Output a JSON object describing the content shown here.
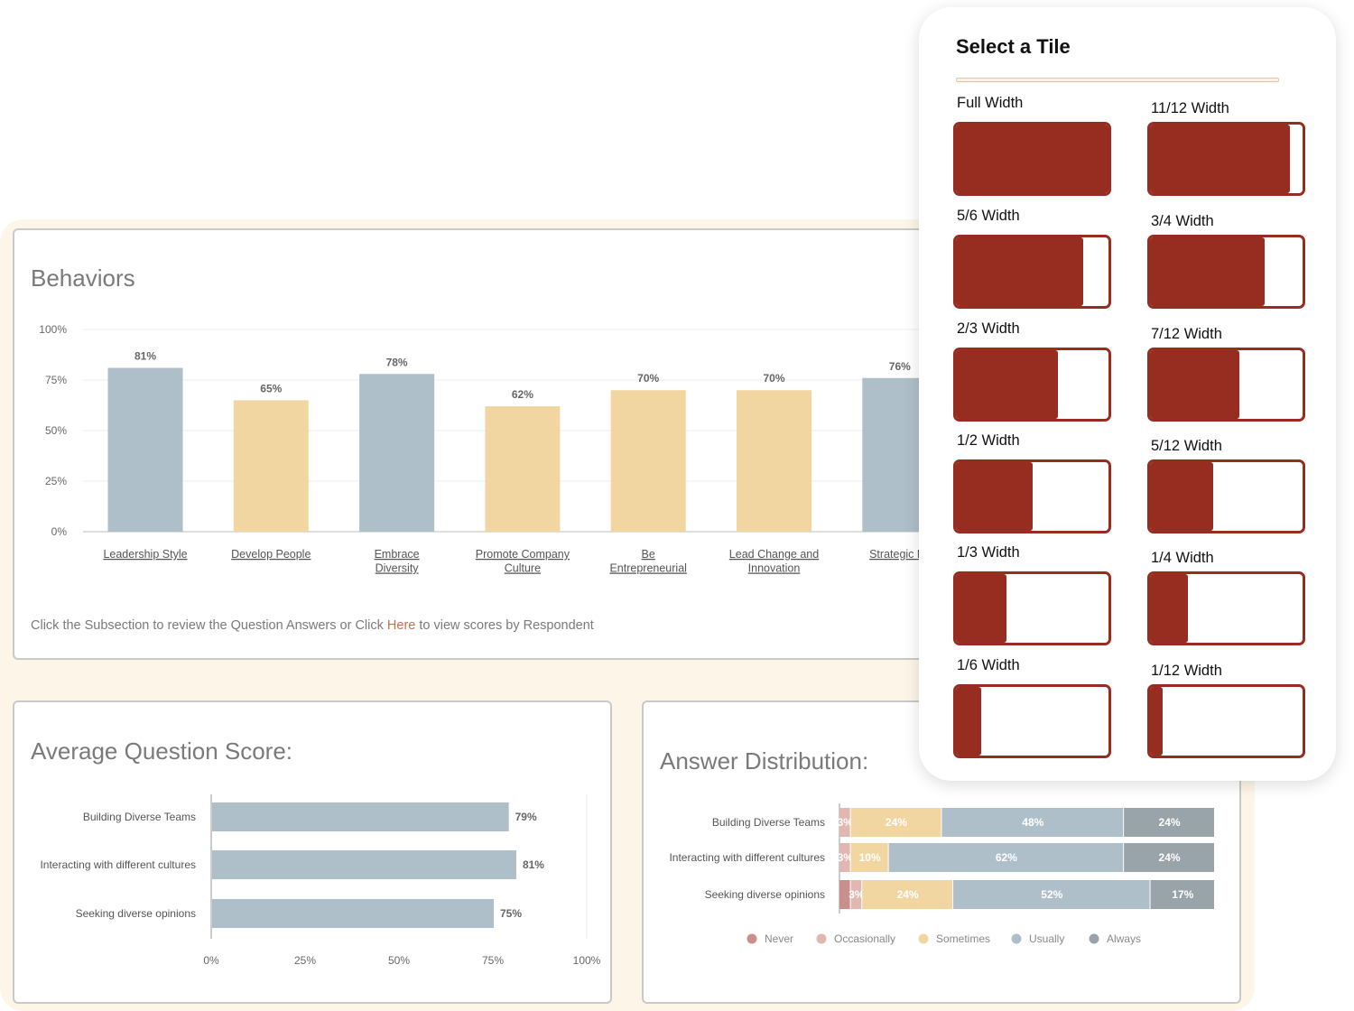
{
  "behaviors": {
    "title": "Behaviors",
    "footer_text_before": "Click the Subsection to review the Question Answers or Click",
    "footer_link": "Here",
    "footer_text_after": "to view scores by Respondent",
    "chart_data": {
      "type": "bar",
      "categories": [
        "Leadership Style",
        "Develop People",
        "Embrace Diversity",
        "Promote Company Culture",
        "Be Entrepreneurial",
        "Lead Change and Innovation",
        "Strategic Fo"
      ],
      "values": [
        81,
        65,
        78,
        62,
        70,
        70,
        76
      ],
      "value_labels": [
        "81%",
        "65%",
        "78%",
        "62%",
        "70%",
        "70%",
        "76%"
      ],
      "bar_colors": [
        "#afbfc9",
        "#f2d6a2",
        "#afbfc9",
        "#f2d6a2",
        "#f2d6a2",
        "#f2d6a2",
        "#afbfc9"
      ],
      "yticks": [
        "100%",
        "75%",
        "50%",
        "25%",
        "0%"
      ],
      "ylim": [
        0,
        100
      ],
      "grid": true
    }
  },
  "avg_score": {
    "title": "Average Question Score:",
    "chart_data": {
      "type": "bar",
      "orientation": "horizontal",
      "categories": [
        "Building Diverse Teams",
        "Interacting with different cultures",
        "Seeking diverse opinions"
      ],
      "values": [
        79,
        81,
        75
      ],
      "value_labels": [
        "79%",
        "81%",
        "75%"
      ],
      "xticks": [
        "0%",
        "25%",
        "50%",
        "75%",
        "100%"
      ],
      "xlim": [
        0,
        100
      ],
      "bar_color": "#afbfc9"
    }
  },
  "distribution": {
    "title": "Answer Distribution:",
    "chart_data": {
      "type": "bar",
      "orientation": "horizontal",
      "stacked": true,
      "categories": [
        "Building Diverse Teams",
        "Interacting with different cultures",
        "Seeking diverse opinions"
      ],
      "series": [
        {
          "name": "Never",
          "color": "#c98f8b",
          "values": [
            0,
            0,
            3
          ]
        },
        {
          "name": "Occasionally",
          "color": "#e2b6b1",
          "values": [
            3,
            3,
            3
          ]
        },
        {
          "name": "Sometimes",
          "color": "#f2d6a2",
          "values": [
            24,
            10,
            24
          ]
        },
        {
          "name": "Usually",
          "color": "#afbfc9",
          "values": [
            48,
            62,
            52
          ]
        },
        {
          "name": "Always",
          "color": "#99a3aa",
          "values": [
            24,
            24,
            17
          ]
        }
      ],
      "segment_labels": [
        [
          "",
          "3%",
          "24%",
          "48%",
          "24%"
        ],
        [
          "",
          "3%",
          "10%",
          "62%",
          "24%"
        ],
        [
          "",
          "3%",
          "24%",
          "52%",
          "17%"
        ]
      ],
      "legend_position": "bottom"
    }
  },
  "tile_selector": {
    "title": "Select a Tile",
    "tiles": [
      {
        "label": "Full Width",
        "fraction": 1.0
      },
      {
        "label": "11/12 Width",
        "fraction": 0.9167
      },
      {
        "label": "5/6 Width",
        "fraction": 0.8333
      },
      {
        "label": "3/4 Width",
        "fraction": 0.75
      },
      {
        "label": "2/3 Width",
        "fraction": 0.6667
      },
      {
        "label": "7/12 Width",
        "fraction": 0.5833
      },
      {
        "label": "1/2 Width",
        "fraction": 0.5
      },
      {
        "label": "5/12 Width",
        "fraction": 0.4167
      },
      {
        "label": "1/3 Width",
        "fraction": 0.3333
      },
      {
        "label": "1/4 Width",
        "fraction": 0.25
      },
      {
        "label": "1/6 Width",
        "fraction": 0.1667
      },
      {
        "label": "1/12 Width",
        "fraction": 0.0833
      }
    ],
    "tile_color": "#962d20"
  }
}
